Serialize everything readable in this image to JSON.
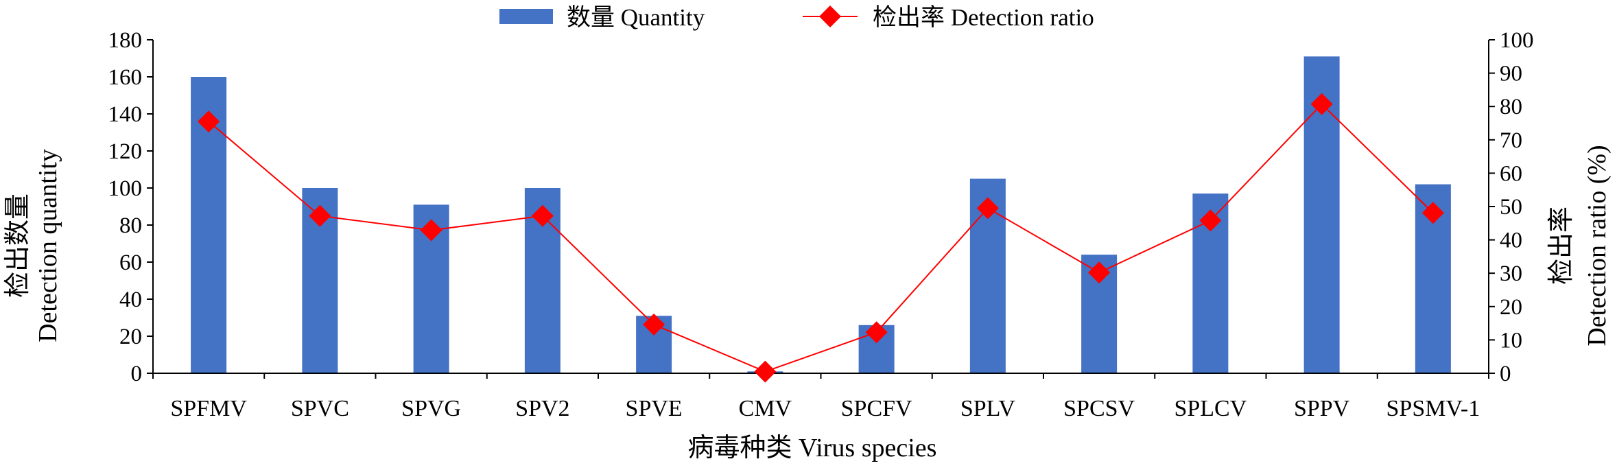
{
  "chart_data": {
    "type": "bar",
    "categories": [
      "SPFMV",
      "SPVC",
      "SPVG",
      "SPV2",
      "SPVE",
      "CMV",
      "SPCFV",
      "SPLV",
      "SPCSV",
      "SPLCV",
      "SPPV",
      "SPSMV-1"
    ],
    "series": [
      {
        "name": "数量 Quantity",
        "type": "bar",
        "axis": "left",
        "color": "#4472C4",
        "values": [
          160,
          100,
          91,
          100,
          31,
          1,
          26,
          105,
          64,
          97,
          171,
          102
        ]
      },
      {
        "name": "检出率 Detection ratio",
        "type": "line",
        "axis": "right",
        "color": "#FF0000",
        "marker": "diamond",
        "values": [
          75.5,
          47.2,
          42.9,
          47.2,
          14.6,
          0.5,
          12.3,
          49.5,
          30.2,
          45.8,
          80.7,
          48.1
        ]
      }
    ],
    "xlabel": "病毒种类 Virus species",
    "ylabel_left": [
      "检出数量",
      "Detection quantity"
    ],
    "ylabel_right": [
      "检出率",
      "Detection ratio (%)"
    ],
    "ylim_left": [
      0,
      180
    ],
    "ylim_right": [
      0,
      100
    ],
    "yticks_left": [
      "0",
      "20",
      "40",
      "60",
      "80",
      "100",
      "120",
      "140",
      "160",
      "180"
    ],
    "yticks_right": [
      "0",
      "10",
      "20",
      "30",
      "40",
      "50",
      "60",
      "70",
      "80",
      "90",
      "100"
    ],
    "grid": false,
    "legend_position": "top-center"
  }
}
